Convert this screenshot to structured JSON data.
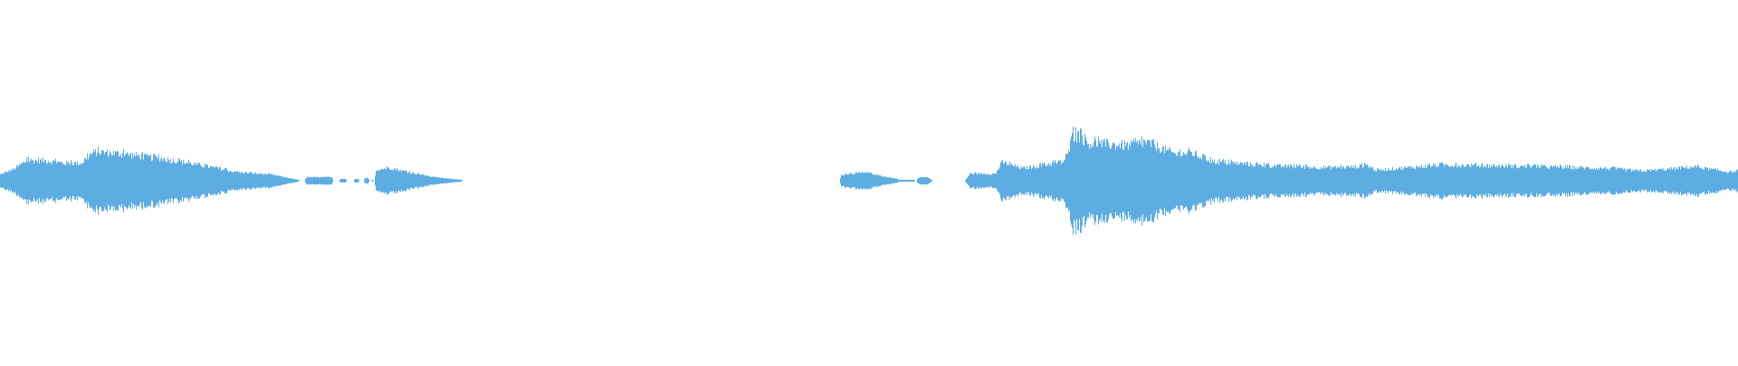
{
  "waveform": {
    "color": "#5dade2",
    "background": "#ffffff"
  }
}
